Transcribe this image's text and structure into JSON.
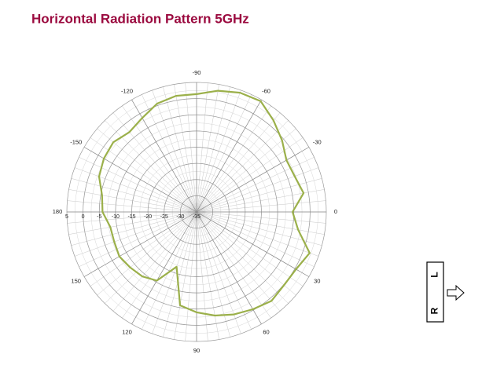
{
  "chart_data": {
    "type": "polar",
    "title": "Horizontal Radiation Pattern 5GHz",
    "x": [
      0,
      10,
      20,
      30,
      40,
      50,
      60,
      70,
      80,
      90,
      100,
      110,
      120,
      130,
      140,
      150,
      160,
      170,
      180,
      -170,
      -160,
      -150,
      -140,
      -130,
      -120,
      -110,
      -100,
      -90,
      -80,
      -70,
      -60,
      -50,
      -40,
      -30,
      -20,
      -10
    ],
    "values": [
      -5.4,
      -3.2,
      2.1,
      0.4,
      0.2,
      0.9,
      -0.3,
      -1.3,
      -2.5,
      -4,
      -5.7,
      -17,
      -10.5,
      -9,
      -8.3,
      -7.5,
      -8,
      -8,
      -6,
      -5.4,
      -3,
      -2,
      -1.5,
      -2.8,
      -1.5,
      0.6,
      1.4,
      1.4,
      3,
      4.2,
      4.5,
      1.9,
      -0.6,
      -3,
      -2.8,
      -1.5
    ],
    "color": "#9bb04a",
    "ylim": [
      -35,
      5
    ],
    "yticks": [
      -35,
      -30,
      -25,
      -20,
      -15,
      -10,
      -5,
      0,
      5
    ],
    "xticks": [
      0,
      30,
      60,
      90,
      120,
      150,
      180,
      -150,
      -120,
      -90,
      -60,
      -30
    ],
    "grid": true,
    "legend": {
      "left": "R",
      "right": "L"
    }
  }
}
